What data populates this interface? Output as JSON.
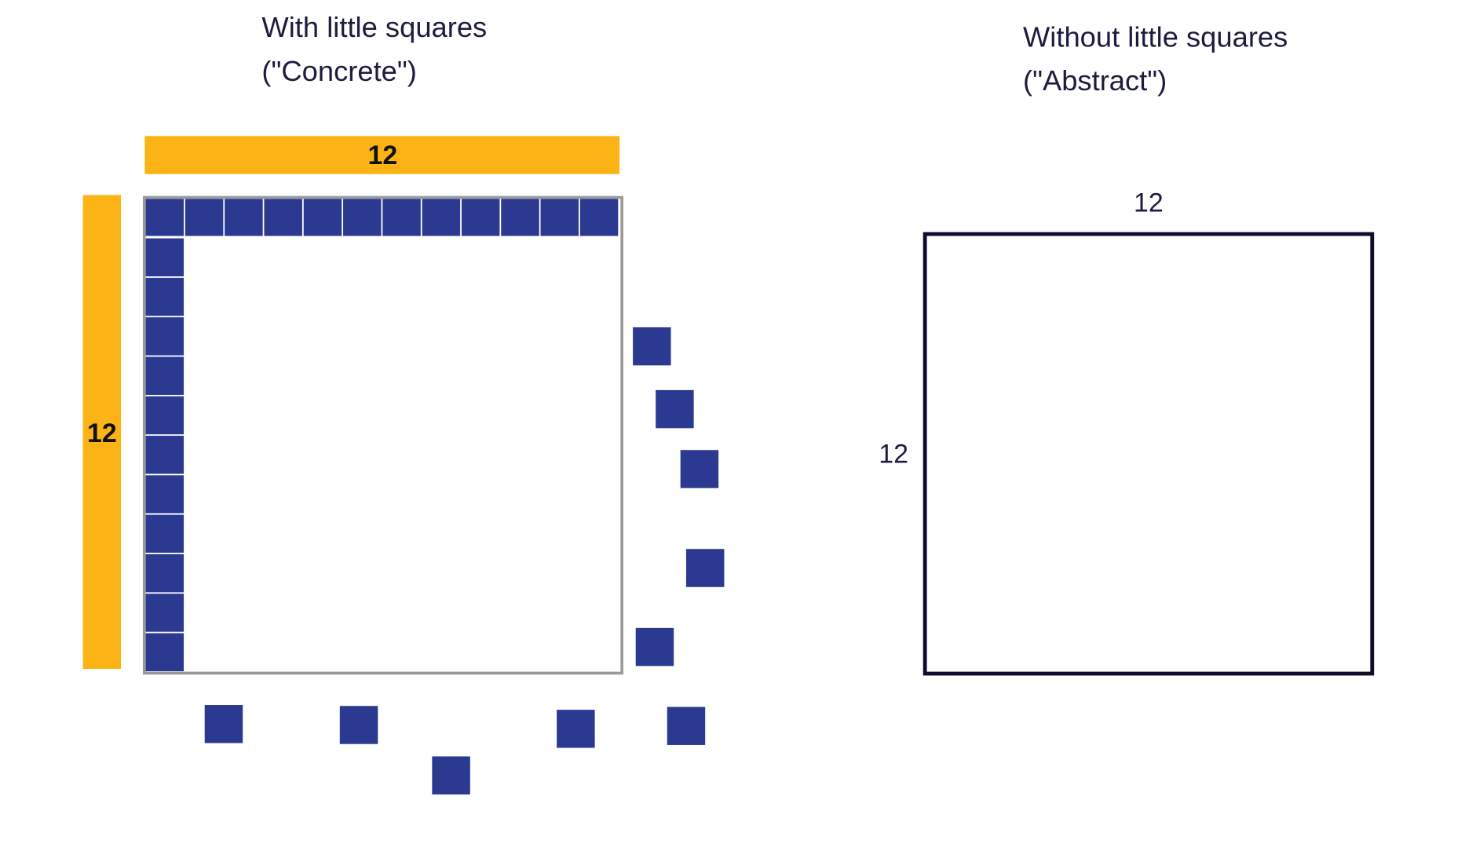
{
  "concrete": {
    "title": [
      "With little squares",
      "(\"Concrete\")"
    ],
    "top_label": "12",
    "side_label": "12"
  },
  "abstract": {
    "title": [
      "Without little squares",
      "(\"Abstract\")"
    ],
    "top_label": "12",
    "side_label": "12"
  }
}
